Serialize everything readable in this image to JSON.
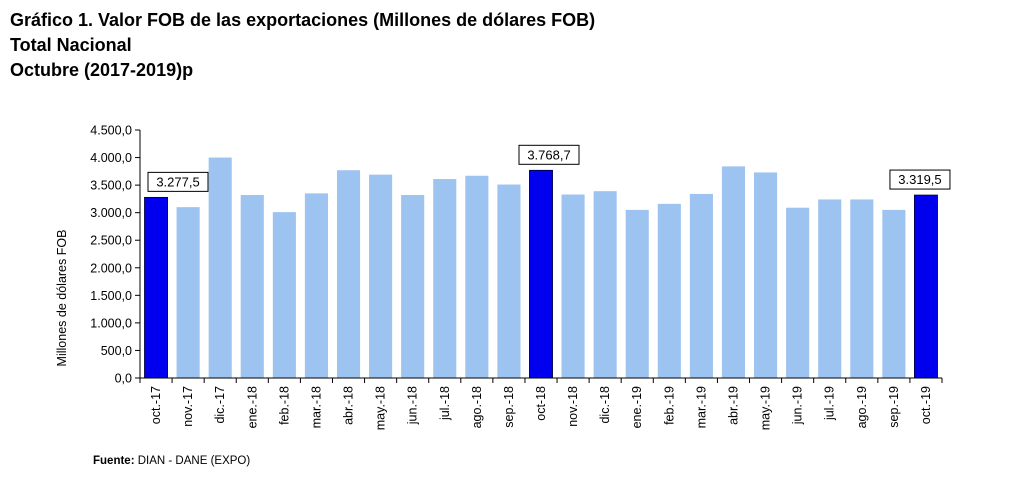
{
  "header": {
    "title": "Gráfico 1. Valor FOB de las exportaciones (Millones de dólares FOB)",
    "subtitle": "Total Nacional",
    "period": "Octubre (2017-2019)p"
  },
  "footer": {
    "source_label": "Fuente:",
    "source_text": "DIAN - DANE (EXPO)"
  },
  "colors": {
    "bar": "#9dc3f0",
    "highlight": "#0000ee",
    "axis": "#000000"
  },
  "chart_data": {
    "type": "bar",
    "title": "",
    "xlabel": "",
    "ylabel": "Millones de dólares FOB",
    "ylim": [
      0,
      4500
    ],
    "yticks": [
      0,
      500,
      1000,
      1500,
      2000,
      2500,
      3000,
      3500,
      4000,
      4500
    ],
    "ytick_labels": [
      "0,0",
      "500,0",
      "1.000,0",
      "1.500,0",
      "2.000,0",
      "2.500,0",
      "3.000,0",
      "3.500,0",
      "4.000,0",
      "4.500,0"
    ],
    "grid": false,
    "categories": [
      "oct.-17",
      "nov.-17",
      "dic.-17",
      "ene.-18",
      "feb.-18",
      "mar.-18",
      "abr.-18",
      "may.-18",
      "jun.-18",
      "jul.-18",
      "ago.-18",
      "sep.-18",
      "oct-18",
      "nov.-18",
      "dic.-18",
      "ene.-19",
      "feb.-19",
      "mar.-19",
      "abr.-19",
      "may.-19",
      "jun.-19",
      "jul.-19",
      "ago.-19",
      "sep.-19",
      "oct.-19"
    ],
    "values": [
      3277.5,
      3100,
      4000,
      3320,
      3010,
      3350,
      3770,
      3690,
      3320,
      3610,
      3670,
      3510,
      3768.7,
      3330,
      3390,
      3050,
      3160,
      3340,
      3840,
      3730,
      3090,
      3240,
      3240,
      3050,
      3319.5
    ],
    "highlighted": [
      0,
      12,
      24
    ],
    "data_labels": [
      {
        "index": 0,
        "text": "3.277,5"
      },
      {
        "index": 12,
        "text": "3.768,7"
      },
      {
        "index": 24,
        "text": "3.319,5"
      }
    ]
  }
}
